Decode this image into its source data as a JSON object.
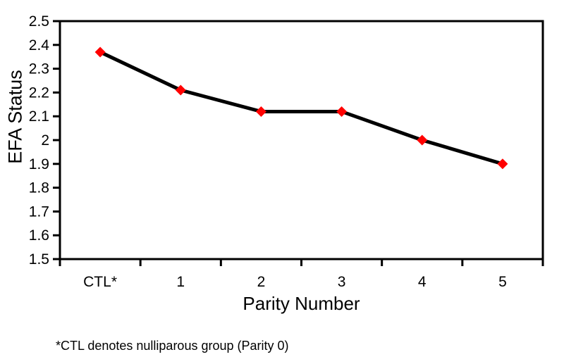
{
  "chart_data": {
    "type": "line",
    "categories": [
      "CTL*",
      "1",
      "2",
      "3",
      "4",
      "5"
    ],
    "series": [
      {
        "name": "EFA Status",
        "values": [
          2.37,
          2.21,
          2.12,
          2.12,
          2.0,
          1.9
        ]
      }
    ],
    "title": "",
    "xlabel": "Parity Number",
    "ylabel": "EFA Status",
    "ylim": [
      1.5,
      2.5
    ],
    "ytick_step": 0.1,
    "ytick_labels": [
      "1.5",
      "1.6",
      "1.7",
      "1.8",
      "1.9",
      "2",
      "2.1",
      "2.2",
      "2.3",
      "2.4",
      "2.5"
    ],
    "grid": false,
    "legend": "none",
    "frame": "box",
    "line_color": "#000000",
    "marker": "diamond",
    "marker_color": "#ff0000"
  },
  "footnote": "*CTL denotes nulliparous group (Parity 0)"
}
